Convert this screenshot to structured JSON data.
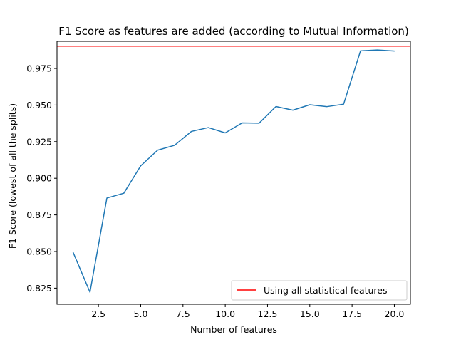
{
  "chart_data": {
    "type": "line",
    "title": "F1 Score as features are added (according to Mutual Information)",
    "xlabel": "Number of features",
    "ylabel": "F1 Score (lowest of all the splits)",
    "xlim": [
      0.05,
      20.95
    ],
    "ylim": [
      0.814,
      0.9935
    ],
    "x_ticks": [
      2.5,
      5.0,
      7.5,
      10.0,
      12.5,
      15.0,
      17.5,
      20.0
    ],
    "x_tick_labels": [
      "2.5",
      "5.0",
      "7.5",
      "10.0",
      "12.5",
      "15.0",
      "17.5",
      "20.0"
    ],
    "y_ticks": [
      0.825,
      0.85,
      0.875,
      0.9,
      0.925,
      0.95,
      0.975
    ],
    "y_tick_labels": [
      "0.825",
      "0.850",
      "0.875",
      "0.900",
      "0.925",
      "0.950",
      "0.975"
    ],
    "grid": false,
    "legend_position": "lower right",
    "series": [
      {
        "color": "#1f77b4",
        "x": [
          1,
          2,
          3,
          4,
          5,
          6,
          7,
          8,
          9,
          10,
          11,
          12,
          13,
          14,
          15,
          16,
          17,
          18,
          19,
          20
        ],
        "values": [
          0.8495,
          0.8222,
          0.8865,
          0.8898,
          0.9085,
          0.9192,
          0.9225,
          0.932,
          0.9346,
          0.931,
          0.9378,
          0.9376,
          0.949,
          0.9465,
          0.9502,
          0.9489,
          0.9506,
          0.987,
          0.9876,
          0.9869
        ]
      }
    ],
    "reference_line": {
      "name": "Using all statistical features",
      "y": 0.9902,
      "color": "#ff0000"
    }
  }
}
